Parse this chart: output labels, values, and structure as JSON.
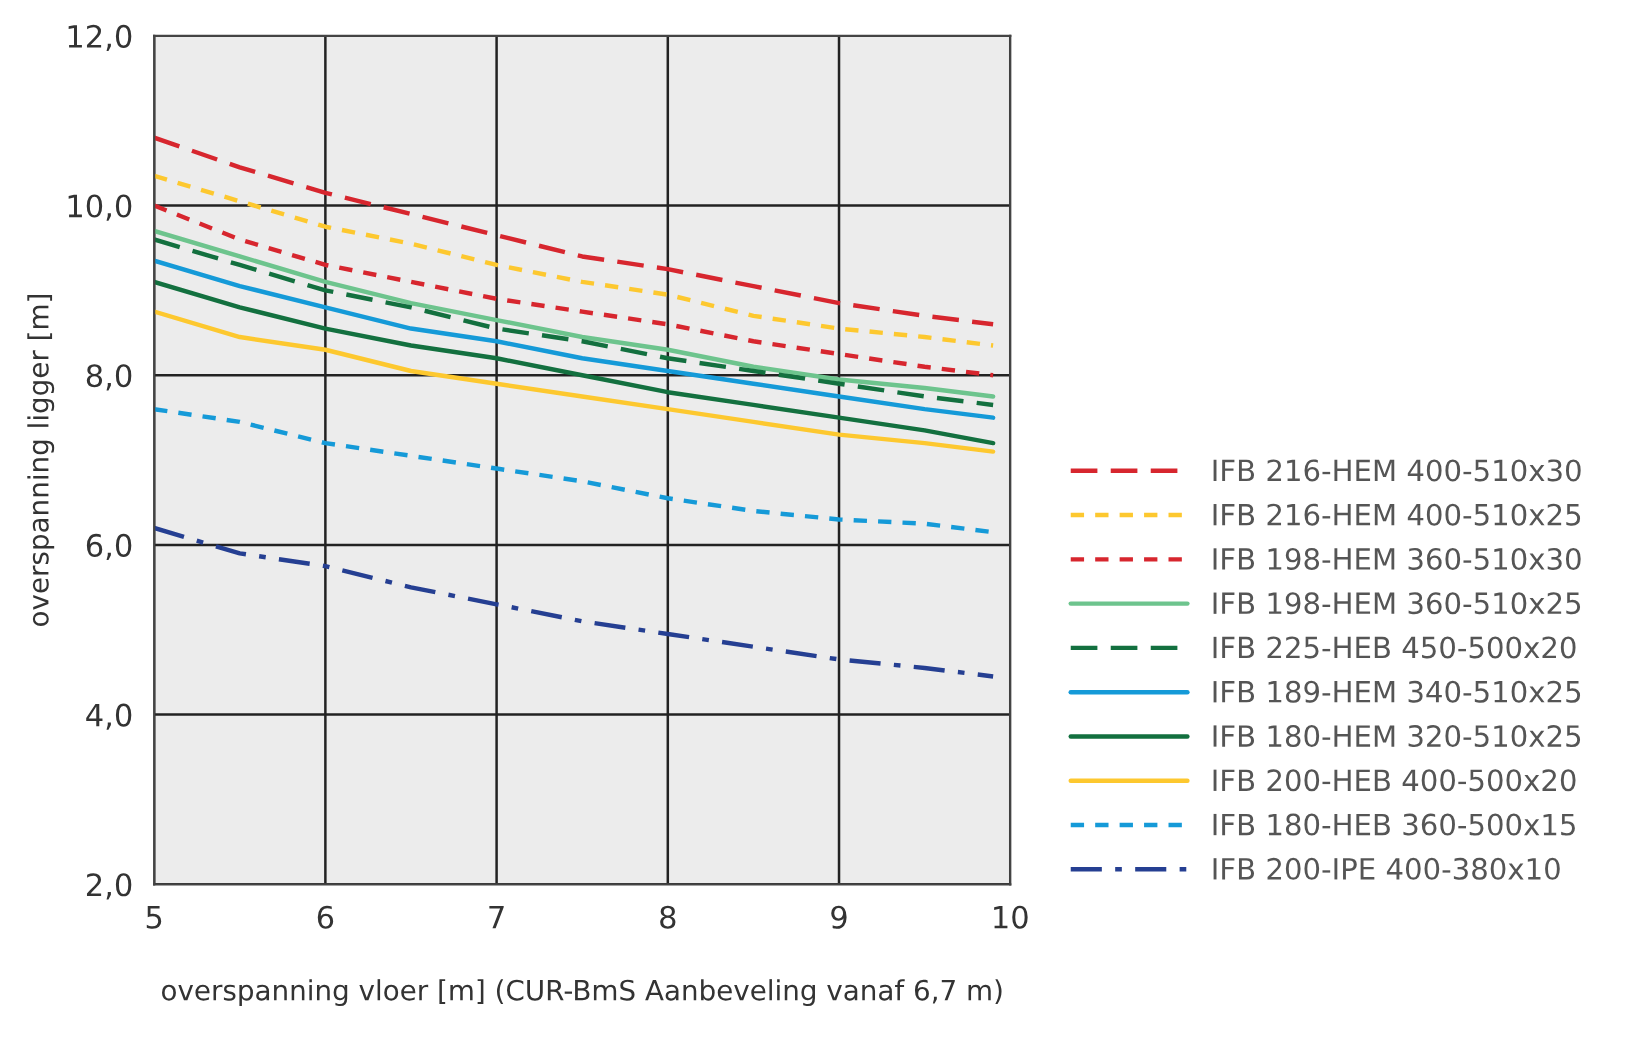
{
  "chart_data": {
    "type": "line",
    "xlabel": "overspanning vloer [m] (CUR-BmS Aanbeveling vanaf 6,7 m)",
    "ylabel": "overspanning ligger [m]",
    "x": [
      5,
      5.5,
      6,
      6.5,
      7,
      7.5,
      8,
      8.5,
      9,
      9.5,
      9.9
    ],
    "xlim": [
      5,
      10
    ],
    "xticks": [
      5,
      6,
      7,
      8,
      9,
      10
    ],
    "ylim": [
      2,
      12
    ],
    "yticks": [
      {
        "value": 2,
        "label": "2,0"
      },
      {
        "value": 4,
        "label": "4,0"
      },
      {
        "value": 6,
        "label": "6,0"
      },
      {
        "value": 8,
        "label": "8,0"
      },
      {
        "value": 10,
        "label": "10,0"
      },
      {
        "value": 12,
        "label": "12,0"
      }
    ],
    "grid": true,
    "legend": "right",
    "marker": "none",
    "series": [
      {
        "name": "IFB 216-HEM 400-510x30",
        "color": "#d7262e",
        "line_style": "dashed",
        "values": [
          10.8,
          10.45,
          10.15,
          9.9,
          9.65,
          9.4,
          9.25,
          9.05,
          8.85,
          8.7,
          8.6
        ]
      },
      {
        "name": "IFB 216-HEM 400-510x25",
        "color": "#fdc82f",
        "line_style": "dotted",
        "values": [
          10.35,
          10.05,
          9.75,
          9.55,
          9.3,
          9.1,
          8.95,
          8.7,
          8.55,
          8.45,
          8.35
        ]
      },
      {
        "name": "IFB 198-HEM 360-510x30",
        "color": "#d7262e",
        "line_style": "dotted",
        "values": [
          10.0,
          9.6,
          9.3,
          9.1,
          8.9,
          8.75,
          8.6,
          8.4,
          8.25,
          8.1,
          8.0
        ]
      },
      {
        "name": "IFB 198-HEM 360-510x25",
        "color": "#6dc48d",
        "line_style": "solid",
        "values": [
          9.7,
          9.4,
          9.1,
          8.85,
          8.65,
          8.45,
          8.3,
          8.1,
          7.95,
          7.85,
          7.75
        ]
      },
      {
        "name": "IFB 225-HEB 450-500x20",
        "color": "#13703f",
        "line_style": "dashed",
        "values": [
          9.6,
          9.3,
          9.0,
          8.8,
          8.55,
          8.4,
          8.2,
          8.05,
          7.9,
          7.75,
          7.65
        ]
      },
      {
        "name": "IFB 189-HEM 340-510x25",
        "color": "#159ad8",
        "line_style": "solid",
        "values": [
          9.35,
          9.05,
          8.8,
          8.55,
          8.4,
          8.2,
          8.05,
          7.9,
          7.75,
          7.6,
          7.5
        ]
      },
      {
        "name": "IFB 180-HEM 320-510x25",
        "color": "#13703f",
        "line_style": "solid",
        "values": [
          9.1,
          8.8,
          8.55,
          8.35,
          8.2,
          8.0,
          7.8,
          7.65,
          7.5,
          7.35,
          7.2
        ]
      },
      {
        "name": "IFB 200-HEB 400-500x20",
        "color": "#fdc82f",
        "line_style": "solid",
        "values": [
          8.75,
          8.45,
          8.3,
          8.05,
          7.9,
          7.75,
          7.6,
          7.45,
          7.3,
          7.2,
          7.1
        ]
      },
      {
        "name": "IFB 180-HEB 360-500x15",
        "color": "#159ad8",
        "line_style": "dotted",
        "values": [
          7.6,
          7.45,
          7.2,
          7.05,
          6.9,
          6.75,
          6.55,
          6.4,
          6.3,
          6.25,
          6.15
        ]
      },
      {
        "name": "IFB 200-IPE 400-380x10",
        "color": "#253f92",
        "line_style": "dashdot",
        "values": [
          6.2,
          5.9,
          5.75,
          5.5,
          5.3,
          5.1,
          4.95,
          4.8,
          4.65,
          4.55,
          4.45
        ]
      }
    ]
  }
}
